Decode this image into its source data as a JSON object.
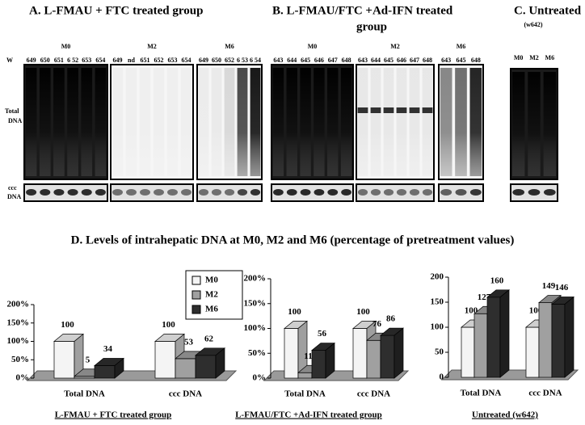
{
  "blots": {
    "row_labels": {
      "lane_row": "W",
      "total": [
        "Total",
        "DNA"
      ],
      "ccc": [
        "ccc",
        "DNA"
      ]
    },
    "panels": [
      {
        "title": [
          "A.  L-FMAU + FTC treated group"
        ],
        "groups": [
          {
            "name": "M0",
            "lanes": [
              "649",
              "650",
              "651",
              "6 52",
              "653",
              "654"
            ]
          },
          {
            "name": "M2",
            "lanes": [
              "649",
              "nd",
              "651",
              "652",
              "653",
              "654"
            ]
          },
          {
            "name": "M6",
            "lanes": [
              "649",
              "650",
              "652",
              "6 53",
              "6 54"
            ]
          }
        ]
      },
      {
        "title": [
          "B.  L-FMAU/FTC +Ad-IFN treated",
          "group"
        ],
        "groups": [
          {
            "name": "M0",
            "lanes": [
              "643",
              "644",
              "645",
              "646",
              "647",
              "648"
            ]
          },
          {
            "name": "M2",
            "lanes": [
              "643",
              "644",
              "645",
              "646",
              "647",
              "648"
            ]
          },
          {
            "name": "M6",
            "lanes": [
              "643",
              "645",
              "648"
            ]
          }
        ]
      },
      {
        "title": [
          "C.  Untreated",
          "(w642)"
        ],
        "groups": [
          {
            "lanes": [
              "M0",
              "M2",
              "M6"
            ]
          }
        ]
      }
    ]
  },
  "section_title": "D.  Levels of intrahepatic DNA at M0, M2 and M6 (percentage of pretreatment values)",
  "chart_data": [
    {
      "type": "bar",
      "title": "L-FMAU + FTC treated group",
      "categories": [
        "Total DNA",
        "ccc DNA"
      ],
      "series": [
        {
          "name": "M0",
          "color": "#f4f4f4",
          "values": [
            100,
            100
          ]
        },
        {
          "name": "M2",
          "color": "#a0a0a0",
          "values": [
            5,
            53
          ]
        },
        {
          "name": "M6",
          "color": "#2e2e2e",
          "values": [
            34,
            62
          ]
        }
      ],
      "ylim": [
        0,
        200
      ],
      "yticks": [
        {
          "value": 0,
          "label": "0%"
        },
        {
          "value": 50,
          "label": "50%"
        },
        {
          "value": 100,
          "label": "100%"
        },
        {
          "value": 150,
          "label": "150%"
        },
        {
          "value": 200,
          "label": "200%"
        }
      ],
      "legend": "upper right"
    },
    {
      "type": "bar",
      "title": "L-FMAU/FTC +Ad-IFN treated group",
      "categories": [
        "Total DNA",
        "ccc DNA"
      ],
      "series": [
        {
          "color": "#f4f4f4",
          "values": [
            100,
            100
          ]
        },
        {
          "color": "#a0a0a0",
          "values": [
            11,
            76
          ]
        },
        {
          "color": "#2e2e2e",
          "values": [
            56,
            86
          ]
        }
      ],
      "ylim": [
        0,
        200
      ],
      "yticks": [
        {
          "value": 0,
          "label": "0%"
        },
        {
          "value": 50,
          "label": "50%"
        },
        {
          "value": 100,
          "label": "100%"
        },
        {
          "value": 150,
          "label": "150%"
        },
        {
          "value": 200,
          "label": "200%"
        }
      ]
    },
    {
      "type": "bar",
      "title": "Untreated (w642)",
      "categories": [
        "Total DNA",
        "ccc DNA"
      ],
      "series": [
        {
          "color": "#f4f4f4",
          "values": [
            100,
            100
          ]
        },
        {
          "color": "#a0a0a0",
          "values": [
            127,
            149
          ]
        },
        {
          "color": "#2e2e2e",
          "values": [
            160,
            146
          ]
        }
      ],
      "ylim": [
        0,
        200
      ],
      "yticks": [
        0,
        50,
        100,
        150,
        200
      ]
    }
  ]
}
